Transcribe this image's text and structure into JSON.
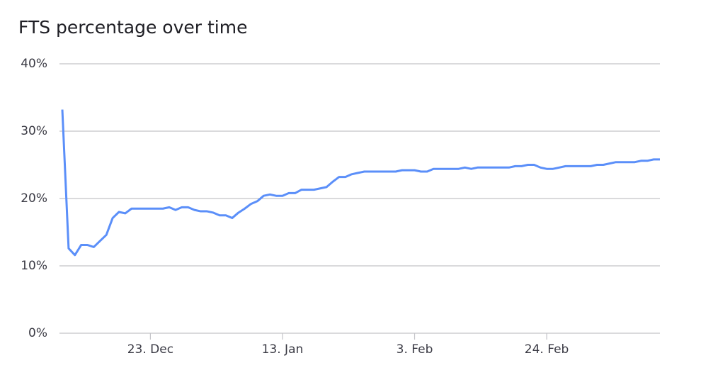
{
  "chart_data": {
    "type": "line",
    "title": "FTS percentage over time",
    "x": [
      "9. Dec",
      "10. Dec",
      "11. Dec",
      "12. Dec",
      "13. Dec",
      "14. Dec",
      "15. Dec",
      "16. Dec",
      "17. Dec",
      "18. Dec",
      "19. Dec",
      "20. Dec",
      "21. Dec",
      "22. Dec",
      "23. Dec",
      "24. Dec",
      "25. Dec",
      "26. Dec",
      "27. Dec",
      "28. Dec",
      "29. Dec",
      "30. Dec",
      "31. Dec",
      "1. Jan",
      "2. Jan",
      "3. Jan",
      "4. Jan",
      "5. Jan",
      "6. Jan",
      "7. Jan",
      "8. Jan",
      "9. Jan",
      "10. Jan",
      "11. Jan",
      "12. Jan",
      "13. Jan",
      "14. Jan",
      "15. Jan",
      "16. Jan",
      "17. Jan",
      "18. Jan",
      "19. Jan",
      "20. Jan",
      "21. Jan",
      "22. Jan",
      "23. Jan",
      "24. Jan",
      "25. Jan",
      "26. Jan",
      "27. Jan",
      "28. Jan",
      "29. Jan",
      "30. Jan",
      "31. Jan",
      "1. Feb",
      "2. Feb",
      "3. Feb",
      "4. Feb",
      "5. Feb",
      "6. Feb",
      "7. Feb",
      "8. Feb",
      "9. Feb",
      "10. Feb",
      "11. Feb",
      "12. Feb",
      "13. Feb",
      "14. Feb",
      "15. Feb",
      "16. Feb",
      "17. Feb",
      "18. Feb",
      "19. Feb",
      "20. Feb",
      "21. Feb",
      "22. Feb",
      "23. Feb",
      "24. Feb",
      "25. Feb",
      "26. Feb",
      "27. Feb",
      "28. Feb",
      "1. Mar",
      "2. Mar",
      "3. Mar",
      "4. Mar",
      "5. Mar",
      "6. Mar",
      "7. Mar",
      "8. Mar",
      "9. Mar",
      "10. Mar",
      "11. Mar",
      "12. Mar",
      "13. Mar",
      "14. Mar"
    ],
    "series": [
      {
        "color": "#5b8ff9",
        "values": [
          33.2,
          12.6,
          11.6,
          13.1,
          13.1,
          12.8,
          13.7,
          14.6,
          17.1,
          18.0,
          17.8,
          18.5,
          18.5,
          18.5,
          18.5,
          18.5,
          18.5,
          18.7,
          18.3,
          18.7,
          18.7,
          18.3,
          18.1,
          18.1,
          17.9,
          17.5,
          17.5,
          17.1,
          17.9,
          18.5,
          19.2,
          19.6,
          20.4,
          20.6,
          20.4,
          20.4,
          20.8,
          20.8,
          21.3,
          21.3,
          21.3,
          21.5,
          21.7,
          22.5,
          23.2,
          23.2,
          23.6,
          23.8,
          24.0,
          24.0,
          24.0,
          24.0,
          24.0,
          24.0,
          24.2,
          24.2,
          24.2,
          24.0,
          24.0,
          24.4,
          24.4,
          24.4,
          24.4,
          24.4,
          24.6,
          24.4,
          24.6,
          24.6,
          24.6,
          24.6,
          24.6,
          24.6,
          24.8,
          24.8,
          25.0,
          25.0,
          24.6,
          24.4,
          24.4,
          24.6,
          24.8,
          24.8,
          24.8,
          24.8,
          24.8,
          25.0,
          25.0,
          25.2,
          25.4,
          25.4,
          25.4,
          25.4,
          25.6,
          25.6,
          25.8,
          25.8
        ]
      }
    ],
    "xticks": [
      "23. Dec",
      "13. Jan",
      "3. Feb",
      "24. Feb"
    ],
    "ylim": [
      0,
      40
    ],
    "yticks": [
      {
        "value": 0,
        "label": "0%"
      },
      {
        "value": 10,
        "label": "10%"
      },
      {
        "value": 20,
        "label": "20%"
      },
      {
        "value": 30,
        "label": "30%"
      },
      {
        "value": 40,
        "label": "40%"
      }
    ],
    "grid": true
  }
}
